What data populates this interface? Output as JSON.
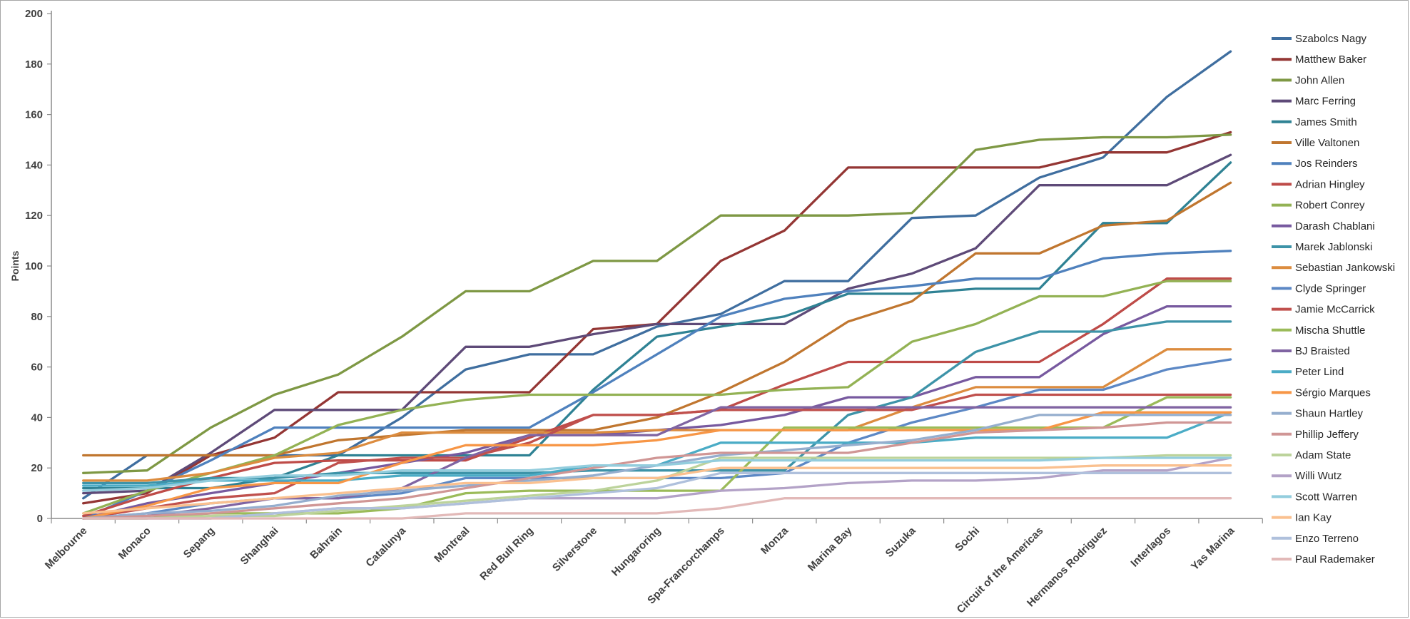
{
  "chart_data": {
    "type": "line",
    "title": "",
    "xlabel": "",
    "ylabel": "Points",
    "ylim": [
      0,
      200
    ],
    "y_tick_step": 20,
    "grid": false,
    "legend_position": "right",
    "categories": [
      "Melbourne",
      "Monaco",
      "Sepang",
      "Shanghai",
      "Bahrain",
      "Catalunya",
      "Montreal",
      "Red Bull Ring",
      "Silverstone",
      "Hungaroring",
      "Spa-Francorchamps",
      "Monza",
      "Marina Bay",
      "Suzuka",
      "Sochi",
      "Circuit of the Americas",
      "Hermanos Rodriguez",
      "Interlagos",
      "Yas Marina"
    ],
    "series": [
      {
        "name": "Szabolcs Nagy",
        "color": "#3F6E9F",
        "values": [
          8,
          25,
          25,
          25,
          25,
          40,
          59,
          65,
          65,
          76,
          81,
          94,
          94,
          119,
          120,
          135,
          143,
          167,
          185
        ]
      },
      {
        "name": "Matthew Baker",
        "color": "#943634",
        "values": [
          6,
          10,
          25,
          32,
          50,
          50,
          50,
          50,
          75,
          77,
          102,
          114,
          139,
          139,
          139,
          139,
          145,
          145,
          153
        ]
      },
      {
        "name": "John Allen",
        "color": "#7E9844",
        "values": [
          18,
          19,
          36,
          49,
          57,
          72,
          90,
          90,
          102,
          102,
          120,
          120,
          120,
          121,
          146,
          150,
          151,
          151,
          152
        ]
      },
      {
        "name": "Marc Ferring",
        "color": "#5E4A78",
        "values": [
          10,
          11,
          26,
          43,
          43,
          43,
          68,
          68,
          73,
          77,
          77,
          77,
          91,
          97,
          107,
          132,
          132,
          132,
          144
        ]
      },
      {
        "name": "James Smith",
        "color": "#2F8294",
        "values": [
          12,
          12,
          12,
          16,
          25,
          25,
          25,
          25,
          51,
          72,
          76,
          80,
          89,
          89,
          91,
          91,
          117,
          117,
          141
        ]
      },
      {
        "name": "Ville Valtonen",
        "color": "#C0762F",
        "values": [
          25,
          25,
          25,
          25,
          31,
          33,
          35,
          35,
          35,
          40,
          50,
          62,
          78,
          86,
          105,
          105,
          116,
          118,
          133
        ]
      },
      {
        "name": "Jos Reinders",
        "color": "#4F81BD",
        "values": [
          0,
          11,
          23,
          36,
          36,
          36,
          36,
          36,
          50,
          65,
          80,
          87,
          90,
          92,
          95,
          95,
          103,
          105,
          106
        ]
      },
      {
        "name": "Adrian Hingley",
        "color": "#BE4B48",
        "values": [
          1,
          9,
          16,
          22,
          23,
          23,
          23,
          32,
          41,
          41,
          43,
          53,
          62,
          62,
          62,
          62,
          77,
          95,
          95
        ]
      },
      {
        "name": "Robert Conrey",
        "color": "#93B254",
        "values": [
          2,
          11,
          18,
          25,
          37,
          43,
          47,
          49,
          49,
          49,
          49,
          51,
          52,
          70,
          77,
          88,
          88,
          94,
          94
        ]
      },
      {
        "name": "Darash Chablani",
        "color": "#77599F",
        "values": [
          0,
          6,
          10,
          14,
          18,
          22,
          26,
          33,
          33,
          35,
          37,
          41,
          48,
          48,
          56,
          56,
          73,
          84,
          84
        ]
      },
      {
        "name": "Marek Jablonski",
        "color": "#3D93A8",
        "values": [
          14,
          14,
          16,
          16,
          18,
          18,
          18,
          18,
          19,
          19,
          19,
          19,
          41,
          48,
          66,
          74,
          74,
          78,
          78
        ]
      },
      {
        "name": "Sebastian Jankowski",
        "color": "#DC8C3F",
        "values": [
          15,
          15,
          18,
          24,
          26,
          34,
          34,
          34,
          34,
          35,
          35,
          35,
          35,
          44,
          52,
          52,
          52,
          67,
          67
        ]
      },
      {
        "name": "Clyde Springer",
        "color": "#5C88C5",
        "values": [
          0,
          2,
          6,
          8,
          8,
          10,
          16,
          16,
          16,
          16,
          16,
          18,
          30,
          38,
          44,
          51,
          51,
          59,
          63
        ]
      },
      {
        "name": "Jamie McCarrick",
        "color": "#C0504D",
        "values": [
          0,
          4,
          8,
          10,
          22,
          24,
          24,
          30,
          41,
          41,
          43,
          43,
          43,
          43,
          49,
          49,
          49,
          49,
          49
        ]
      },
      {
        "name": "Mischa Shuttle",
        "color": "#9BBB59",
        "values": [
          0,
          0,
          2,
          2,
          2,
          4,
          10,
          11,
          11,
          11,
          11,
          36,
          36,
          36,
          36,
          36,
          36,
          48,
          48
        ]
      },
      {
        "name": "BJ Braisted",
        "color": "#8064A2",
        "values": [
          0,
          1,
          4,
          8,
          8,
          12,
          24,
          33,
          33,
          33,
          44,
          44,
          44,
          44,
          44,
          44,
          44,
          44,
          44
        ]
      },
      {
        "name": "Peter Lind",
        "color": "#4BACC6",
        "values": [
          13,
          13,
          15,
          15,
          15,
          17,
          17,
          17,
          21,
          21,
          30,
          30,
          30,
          30,
          32,
          32,
          32,
          32,
          42
        ]
      },
      {
        "name": "Sérgio Marques",
        "color": "#F79646",
        "values": [
          0,
          5,
          12,
          14,
          14,
          22,
          29,
          29,
          29,
          31,
          35,
          35,
          35,
          35,
          35,
          35,
          42,
          42,
          42
        ]
      },
      {
        "name": "Shaun Hartley",
        "color": "#95AECE",
        "values": [
          0,
          2,
          3,
          5,
          9,
          11,
          13,
          15,
          17,
          21,
          25,
          27,
          29,
          31,
          35,
          41,
          41,
          41,
          41
        ]
      },
      {
        "name": "Phillip Jeffery",
        "color": "#D09695",
        "values": [
          0,
          1,
          2,
          4,
          6,
          8,
          12,
          16,
          20,
          24,
          26,
          26,
          26,
          30,
          34,
          35,
          36,
          38,
          38
        ]
      },
      {
        "name": "Adam State",
        "color": "#BCD39B",
        "values": [
          0,
          0,
          1,
          1,
          3,
          5,
          7,
          9,
          11,
          15,
          24,
          24,
          24,
          24,
          24,
          24,
          24,
          25,
          25
        ]
      },
      {
        "name": "Willi Wutz",
        "color": "#B3A2C7",
        "values": [
          0,
          0,
          0,
          2,
          4,
          4,
          6,
          8,
          8,
          8,
          11,
          12,
          14,
          15,
          15,
          16,
          19,
          19,
          24
        ]
      },
      {
        "name": "Scott Warren",
        "color": "#93CDDD",
        "values": [
          11,
          12,
          15,
          17,
          17,
          19,
          19,
          19,
          21,
          21,
          23,
          23,
          23,
          23,
          23,
          23,
          24,
          24,
          24
        ]
      },
      {
        "name": "Ian Kay",
        "color": "#FAC08F",
        "values": [
          2,
          4,
          6,
          8,
          10,
          12,
          14,
          14,
          16,
          16,
          20,
          20,
          20,
          20,
          20,
          20,
          21,
          21,
          21
        ]
      },
      {
        "name": "Enzo Terreno",
        "color": "#AFC0DC",
        "values": [
          0,
          0,
          0,
          2,
          4,
          4,
          6,
          8,
          10,
          12,
          18,
          18,
          18,
          18,
          18,
          18,
          18,
          18,
          18
        ]
      },
      {
        "name": "Paul Rademaker",
        "color": "#E2B9B8",
        "values": [
          0,
          0,
          0,
          0,
          0,
          0,
          2,
          2,
          2,
          2,
          4,
          8,
          8,
          8,
          8,
          8,
          8,
          8,
          8
        ]
      }
    ]
  },
  "style": {
    "axis_color": "#8C8C8C",
    "tick_label_color": "#404040",
    "legend_text_color": "#262626",
    "line_width": 3.3,
    "background": "#FFFFFF"
  }
}
